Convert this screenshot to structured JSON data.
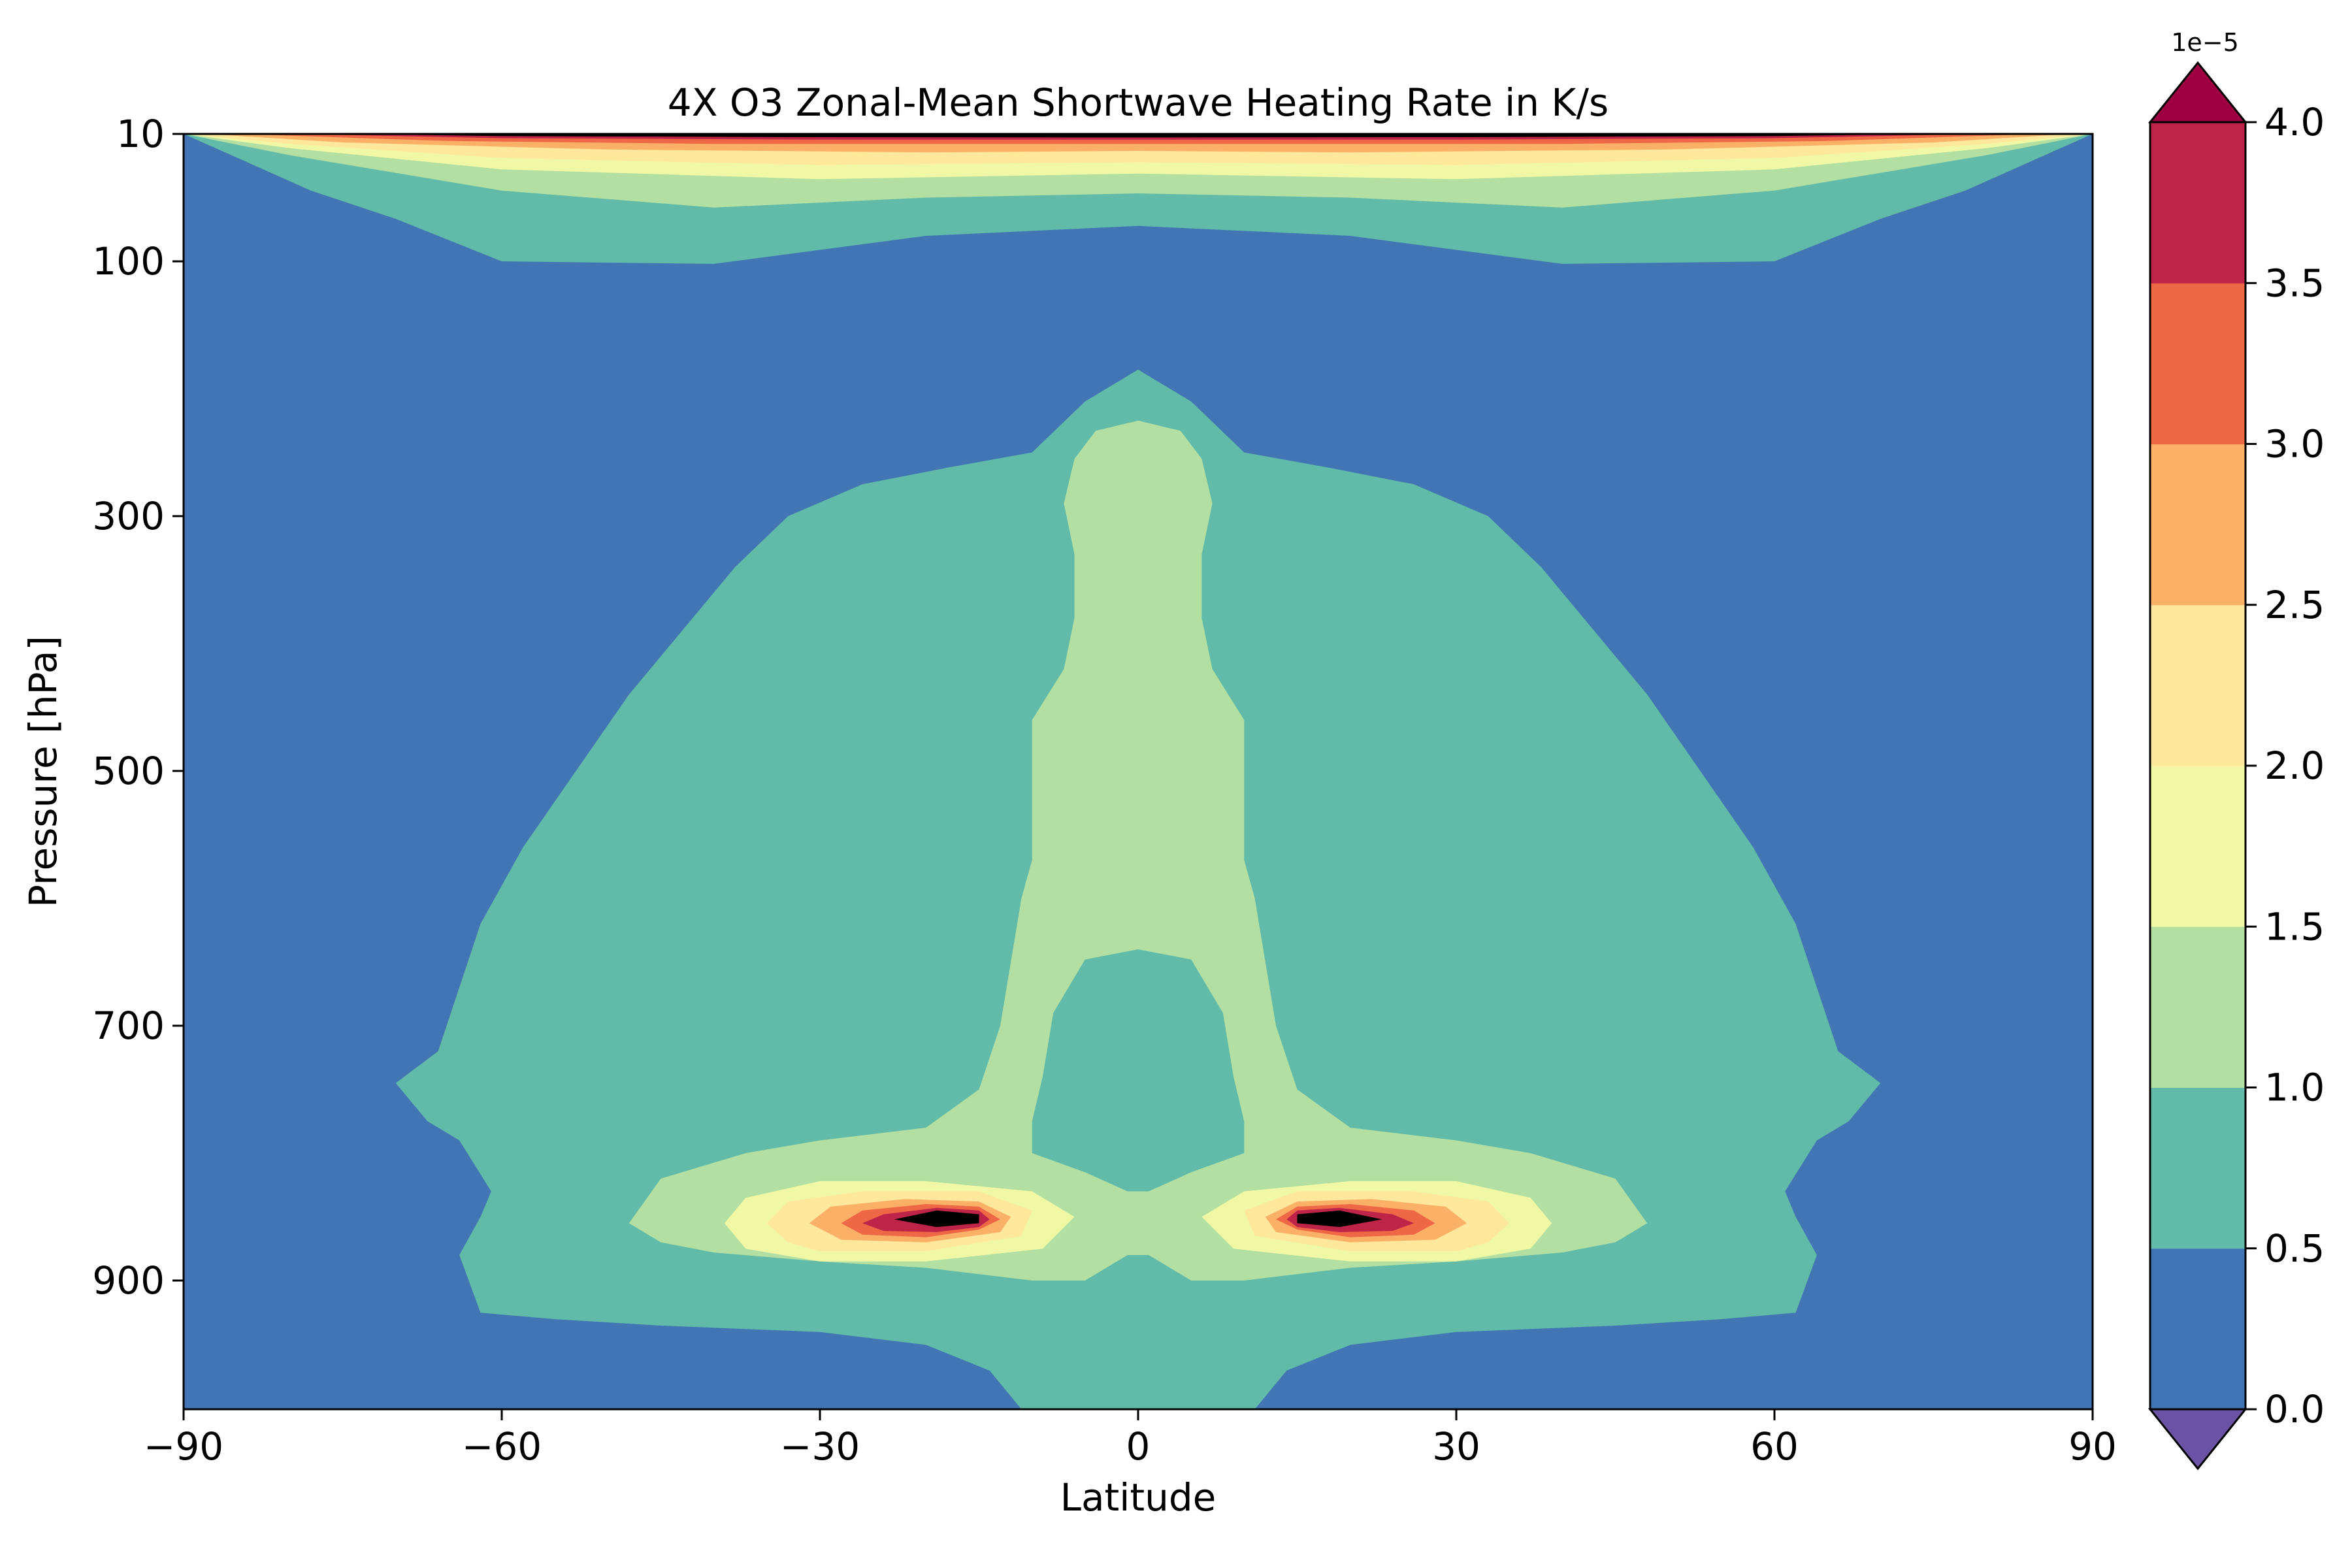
{
  "chart_data": {
    "type": "contourf",
    "title": "4X O3 Zonal-Mean Shortwave Heating Rate in K/s",
    "xlabel": "Latitude",
    "ylabel": "Pressure [hPa]",
    "xlim": [
      -90,
      90
    ],
    "ylim": [
      1000,
      10
    ],
    "y_inverted": true,
    "x_ticks": [
      {
        "value": -90,
        "label": "−90"
      },
      {
        "value": -60,
        "label": "−60"
      },
      {
        "value": -30,
        "label": "−30"
      },
      {
        "value": 0,
        "label": "0"
      },
      {
        "value": 30,
        "label": "30"
      },
      {
        "value": 60,
        "label": "60"
      },
      {
        "value": 90,
        "label": "90"
      }
    ],
    "y_ticks": [
      {
        "value": 10,
        "label": "10"
      },
      {
        "value": 100,
        "label": "100"
      },
      {
        "value": 300,
        "label": "300"
      },
      {
        "value": 500,
        "label": "500"
      },
      {
        "value": 700,
        "label": "700"
      },
      {
        "value": 900,
        "label": "900"
      }
    ],
    "colormap": "Spectral_r",
    "extend": "both",
    "levels": [
      0.0,
      0.5,
      1.0,
      1.5,
      2.0,
      2.5,
      3.0,
      3.5,
      4.0
    ],
    "level_scale": "1e−5",
    "colorbar_ticks": [
      "0.0",
      "0.5",
      "1.0",
      "1.5",
      "2.0",
      "2.5",
      "3.0",
      "3.5",
      "4.0"
    ],
    "band_colors": [
      "#4275b3",
      "#61bba8",
      "#b3e0a2",
      "#f0f8a6",
      "#fde89b",
      "#fbb067",
      "#ef6845",
      "#be2448"
    ],
    "under_color": "#6a52a4",
    "over_color": "#9d0142",
    "regions": [
      {
        "level": 1,
        "points": [
          [
            -90,
            10
          ],
          [
            -84,
            30
          ],
          [
            -78,
            50
          ],
          [
            -70,
            70
          ],
          [
            -60,
            100
          ],
          [
            -40,
            102
          ],
          [
            -20,
            82
          ],
          [
            0,
            75
          ],
          [
            20,
            82
          ],
          [
            40,
            102
          ],
          [
            60,
            100
          ],
          [
            70,
            70
          ],
          [
            78,
            50
          ],
          [
            84,
            30
          ],
          [
            90,
            10
          ]
        ]
      },
      {
        "level": 2,
        "points": [
          [
            -90,
            10
          ],
          [
            -80,
            25
          ],
          [
            -60,
            50
          ],
          [
            -40,
            62
          ],
          [
            -20,
            55
          ],
          [
            0,
            52
          ],
          [
            20,
            55
          ],
          [
            40,
            62
          ],
          [
            60,
            50
          ],
          [
            80,
            25
          ],
          [
            90,
            10
          ]
        ]
      },
      {
        "level": 3,
        "points": [
          [
            -90,
            10
          ],
          [
            -80,
            20
          ],
          [
            -60,
            35
          ],
          [
            -30,
            42
          ],
          [
            0,
            38
          ],
          [
            30,
            42
          ],
          [
            60,
            35
          ],
          [
            80,
            20
          ],
          [
            90,
            10
          ]
        ]
      },
      {
        "level": 4,
        "points": [
          [
            -90,
            10
          ],
          [
            -80,
            17
          ],
          [
            -60,
            27
          ],
          [
            -30,
            32
          ],
          [
            0,
            30
          ],
          [
            30,
            32
          ],
          [
            60,
            27
          ],
          [
            80,
            17
          ],
          [
            90,
            10
          ]
        ]
      },
      {
        "level": 5,
        "points": [
          [
            -88,
            10
          ],
          [
            -75,
            16
          ],
          [
            -50,
            21
          ],
          [
            -20,
            23
          ],
          [
            0,
            22
          ],
          [
            20,
            23
          ],
          [
            50,
            21
          ],
          [
            75,
            16
          ],
          [
            88,
            10
          ]
        ]
      },
      {
        "level": 6,
        "points": [
          [
            -85,
            10
          ],
          [
            -65,
            15
          ],
          [
            -40,
            17
          ],
          [
            0,
            17
          ],
          [
            40,
            17
          ],
          [
            65,
            15
          ],
          [
            85,
            10
          ]
        ]
      },
      {
        "level": 7,
        "points": [
          [
            -80,
            10
          ],
          [
            -60,
            13
          ],
          [
            -30,
            14
          ],
          [
            0,
            14
          ],
          [
            30,
            14
          ],
          [
            60,
            13
          ],
          [
            80,
            10
          ]
        ]
      },
      {
        "level": 8,
        "points": [
          [
            -75,
            10
          ],
          [
            -60,
            11.5
          ],
          [
            -30,
            12.3
          ],
          [
            0,
            12.5
          ],
          [
            30,
            12.3
          ],
          [
            60,
            11.5
          ],
          [
            75,
            10
          ]
        ]
      },
      {
        "level": 1,
        "points": [
          [
            -70,
            745
          ],
          [
            -66,
            720
          ],
          [
            -62,
            620
          ],
          [
            -58,
            560
          ],
          [
            -53,
            500
          ],
          [
            -48,
            440
          ],
          [
            -44,
            400
          ],
          [
            -38,
            340
          ],
          [
            -33,
            300
          ],
          [
            -26,
            275
          ],
          [
            -18,
            262
          ],
          [
            -10,
            250
          ],
          [
            -5,
            210
          ],
          [
            0,
            185
          ],
          [
            5,
            210
          ],
          [
            10,
            250
          ],
          [
            18,
            262
          ],
          [
            26,
            275
          ],
          [
            33,
            300
          ],
          [
            38,
            340
          ],
          [
            44,
            400
          ],
          [
            48,
            440
          ],
          [
            53,
            500
          ],
          [
            58,
            560
          ],
          [
            62,
            620
          ],
          [
            66,
            720
          ],
          [
            70,
            745
          ],
          [
            67,
            775
          ],
          [
            64,
            790
          ],
          [
            61,
            830
          ],
          [
            62,
            850
          ],
          [
            64,
            880
          ],
          [
            62,
            925
          ],
          [
            55,
            930
          ],
          [
            45,
            935
          ],
          [
            30,
            940
          ],
          [
            20,
            950
          ],
          [
            14,
            970
          ],
          [
            11,
            1000
          ],
          [
            -11,
            1000
          ],
          [
            -14,
            970
          ],
          [
            -20,
            950
          ],
          [
            -30,
            940
          ],
          [
            -45,
            935
          ],
          [
            -55,
            930
          ],
          [
            -62,
            925
          ],
          [
            -64,
            880
          ],
          [
            -62,
            850
          ],
          [
            -61,
            830
          ],
          [
            -64,
            790
          ],
          [
            -67,
            775
          ]
        ]
      },
      {
        "level": 2,
        "points": [
          [
            0,
            225
          ],
          [
            4,
            233
          ],
          [
            6,
            255
          ],
          [
            7,
            290
          ],
          [
            6,
            330
          ],
          [
            6,
            380
          ],
          [
            7,
            420
          ],
          [
            10,
            460
          ],
          [
            10,
            535
          ],
          [
            10,
            570
          ],
          [
            11,
            600
          ],
          [
            12,
            650
          ],
          [
            13,
            700
          ],
          [
            15,
            750
          ],
          [
            20,
            780
          ],
          [
            30,
            790
          ],
          [
            37,
            800
          ],
          [
            41,
            810
          ],
          [
            45,
            820
          ],
          [
            48,
            855
          ],
          [
            45,
            870
          ],
          [
            40,
            878
          ],
          [
            30,
            885
          ],
          [
            20,
            890
          ],
          [
            10,
            900
          ],
          [
            5,
            900
          ],
          [
            1,
            880
          ],
          [
            -1,
            880
          ],
          [
            -5,
            900
          ],
          [
            -10,
            900
          ],
          [
            -20,
            890
          ],
          [
            -30,
            885
          ],
          [
            -40,
            878
          ],
          [
            -45,
            870
          ],
          [
            -48,
            855
          ],
          [
            -45,
            820
          ],
          [
            -41,
            810
          ],
          [
            -37,
            800
          ],
          [
            -30,
            790
          ],
          [
            -20,
            780
          ],
          [
            -15,
            750
          ],
          [
            -13,
            700
          ],
          [
            -12,
            650
          ],
          [
            -11,
            600
          ],
          [
            -10,
            570
          ],
          [
            -10,
            535
          ],
          [
            -10,
            460
          ],
          [
            -7,
            420
          ],
          [
            -6,
            380
          ],
          [
            -6,
            330
          ],
          [
            -7,
            290
          ],
          [
            -6,
            255
          ],
          [
            -4,
            233
          ]
        ]
      },
      {
        "level": 1,
        "points": [
          [
            0,
            640
          ],
          [
            5,
            648
          ],
          [
            8,
            690
          ],
          [
            9,
            740
          ],
          [
            10,
            775
          ],
          [
            10,
            800
          ],
          [
            5,
            815
          ],
          [
            1,
            830
          ],
          [
            -1,
            830
          ],
          [
            -5,
            815
          ],
          [
            -10,
            800
          ],
          [
            -10,
            775
          ],
          [
            -9,
            740
          ],
          [
            -8,
            690
          ],
          [
            -5,
            648
          ]
        ]
      },
      {
        "level": 3,
        "points": [
          [
            -39,
            855
          ],
          [
            -37,
            835
          ],
          [
            -30,
            822
          ],
          [
            -20,
            822
          ],
          [
            -10,
            830
          ],
          [
            -6,
            850
          ],
          [
            -9,
            875
          ],
          [
            -20,
            885
          ],
          [
            -30,
            885
          ],
          [
            -37,
            875
          ]
        ]
      },
      {
        "level": 3,
        "points": [
          [
            39,
            855
          ],
          [
            37,
            835
          ],
          [
            30,
            822
          ],
          [
            20,
            822
          ],
          [
            10,
            830
          ],
          [
            6,
            850
          ],
          [
            9,
            875
          ],
          [
            20,
            885
          ],
          [
            30,
            885
          ],
          [
            37,
            875
          ]
        ]
      },
      {
        "level": 4,
        "points": [
          [
            -35,
            855
          ],
          [
            -33,
            838
          ],
          [
            -26,
            830
          ],
          [
            -15,
            830
          ],
          [
            -10,
            845
          ],
          [
            -11,
            865
          ],
          [
            -20,
            877
          ],
          [
            -30,
            877
          ],
          [
            -33,
            870
          ]
        ]
      },
      {
        "level": 4,
        "points": [
          [
            35,
            855
          ],
          [
            33,
            838
          ],
          [
            26,
            830
          ],
          [
            15,
            830
          ],
          [
            10,
            845
          ],
          [
            11,
            865
          ],
          [
            20,
            877
          ],
          [
            30,
            877
          ],
          [
            33,
            870
          ]
        ]
      },
      {
        "level": 5,
        "points": [
          [
            -31,
            855
          ],
          [
            -29,
            842
          ],
          [
            -22,
            836
          ],
          [
            -15,
            838
          ],
          [
            -12,
            850
          ],
          [
            -13,
            862
          ],
          [
            -20,
            870
          ],
          [
            -28,
            868
          ]
        ]
      },
      {
        "level": 5,
        "points": [
          [
            31,
            855
          ],
          [
            29,
            842
          ],
          [
            22,
            836
          ],
          [
            15,
            838
          ],
          [
            12,
            850
          ],
          [
            13,
            862
          ],
          [
            20,
            870
          ],
          [
            28,
            868
          ]
        ]
      },
      {
        "level": 6,
        "points": [
          [
            -28,
            855
          ],
          [
            -26,
            845
          ],
          [
            -20,
            840
          ],
          [
            -15,
            842
          ],
          [
            -13,
            852
          ],
          [
            -15,
            860
          ],
          [
            -20,
            866
          ],
          [
            -26,
            864
          ]
        ]
      },
      {
        "level": 6,
        "points": [
          [
            28,
            855
          ],
          [
            26,
            845
          ],
          [
            20,
            840
          ],
          [
            15,
            842
          ],
          [
            13,
            852
          ],
          [
            15,
            860
          ],
          [
            20,
            866
          ],
          [
            26,
            864
          ]
        ]
      },
      {
        "level": 7,
        "points": [
          [
            -26,
            855
          ],
          [
            -24,
            848
          ],
          [
            -19,
            843
          ],
          [
            -15,
            845
          ],
          [
            -14,
            852
          ],
          [
            -15,
            858
          ],
          [
            -19,
            862
          ],
          [
            -24,
            861
          ]
        ]
      },
      {
        "level": 7,
        "points": [
          [
            26,
            855
          ],
          [
            24,
            848
          ],
          [
            19,
            843
          ],
          [
            15,
            845
          ],
          [
            14,
            852
          ],
          [
            15,
            858
          ],
          [
            19,
            862
          ],
          [
            24,
            861
          ]
        ]
      },
      {
        "level": 8,
        "points": [
          [
            -23,
            852
          ],
          [
            -19,
            845
          ],
          [
            -15,
            848
          ],
          [
            -15,
            855
          ],
          [
            -19,
            858
          ]
        ]
      },
      {
        "level": 8,
        "points": [
          [
            23,
            852
          ],
          [
            19,
            845
          ],
          [
            15,
            848
          ],
          [
            15,
            855
          ],
          [
            19,
            858
          ]
        ]
      }
    ]
  }
}
